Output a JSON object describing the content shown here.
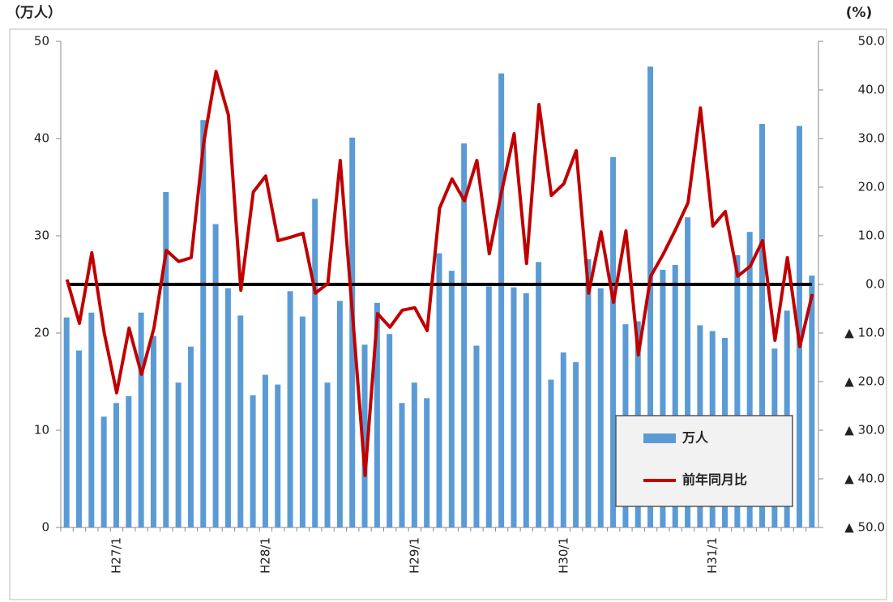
{
  "chart_data": {
    "type": "bar_line",
    "y_label": "（万人）",
    "y2_label": "(%)",
    "categories": [
      null,
      null,
      null,
      null,
      "H27/1",
      null,
      null,
      null,
      null,
      null,
      null,
      null,
      null,
      null,
      null,
      null,
      "H28/1",
      null,
      null,
      null,
      null,
      null,
      null,
      null,
      null,
      null,
      null,
      null,
      "H29/1",
      null,
      null,
      null,
      null,
      null,
      null,
      null,
      null,
      null,
      null,
      null,
      "H30/1",
      null,
      null,
      null,
      null,
      null,
      null,
      null,
      null,
      null,
      null,
      null,
      "H31/1",
      null,
      null,
      null,
      null,
      null,
      null,
      null,
      null
    ],
    "series": [
      {
        "name": "万人",
        "type": "bar",
        "color": "#5b9bd5",
        "axis": "y",
        "values": [
          21.6,
          18.2,
          22.1,
          11.4,
          12.8,
          13.5,
          22.1,
          19.7,
          34.5,
          14.9,
          18.6,
          41.9,
          31.2,
          24.6,
          21.8,
          13.6,
          15.7,
          14.7,
          24.3,
          21.7,
          33.8,
          14.9,
          23.3,
          40.1,
          18.8,
          23.1,
          19.9,
          12.8,
          14.9,
          13.3,
          28.2,
          26.4,
          39.5,
          18.7,
          24.8,
          46.7,
          24.7,
          24.1,
          27.3,
          15.2,
          18.0,
          17.0,
          27.6,
          24.6,
          38.1,
          20.9,
          21.2,
          47.4,
          26.5,
          27.0,
          31.9,
          20.8,
          20.2,
          19.5,
          28.0,
          30.4,
          41.5,
          18.4,
          22.3,
          41.3,
          25.9
        ]
      },
      {
        "name": "前年同月比",
        "type": "line",
        "color": "#c00000",
        "axis": "y2",
        "values": [
          1,
          -8,
          6.5,
          -10,
          -22.3,
          -9,
          -18.5,
          -9,
          7,
          4.7,
          5.5,
          29,
          43.8,
          34.8,
          -1.2,
          19,
          22.3,
          9,
          9.7,
          10.5,
          -1.8,
          0.2,
          25.5,
          -6.5,
          -39.3,
          -6,
          -8.8,
          -5.3,
          -4.8,
          -9.5,
          15.7,
          21.7,
          17.2,
          25.5,
          6.3,
          19.2,
          31,
          4.3,
          37,
          18.3,
          20.7,
          27.5,
          -1.8,
          10.8,
          -3.7,
          11,
          -14.5,
          1.7,
          6.2,
          11.3,
          16.8,
          36.3,
          12,
          15,
          1.7,
          3.7,
          9,
          -11.5,
          5.5,
          -12.8,
          -2
        ]
      }
    ],
    "ylim": [
      0,
      50
    ],
    "yticks": [
      0,
      10,
      20,
      30,
      40,
      50
    ],
    "y2lim": [
      -50,
      50
    ],
    "y2ticks": [
      {
        "value": -50,
        "label": "▲ 50.0"
      },
      {
        "value": -40,
        "label": "▲ 40.0"
      },
      {
        "value": -30,
        "label": "▲ 30.0"
      },
      {
        "value": -20,
        "label": "▲ 20.0"
      },
      {
        "value": -10,
        "label": "▲ 10.0"
      },
      {
        "value": 0,
        "label": "0.0"
      },
      {
        "value": 10,
        "label": "10.0"
      },
      {
        "value": 20,
        "label": "20.0"
      },
      {
        "value": 30,
        "label": "30.0"
      },
      {
        "value": 40,
        "label": "40.0"
      },
      {
        "value": 50,
        "label": "50.0"
      }
    ],
    "reference_line": {
      "axis": "y2",
      "value": 0,
      "color": "#000000"
    },
    "legend": "lower right"
  }
}
